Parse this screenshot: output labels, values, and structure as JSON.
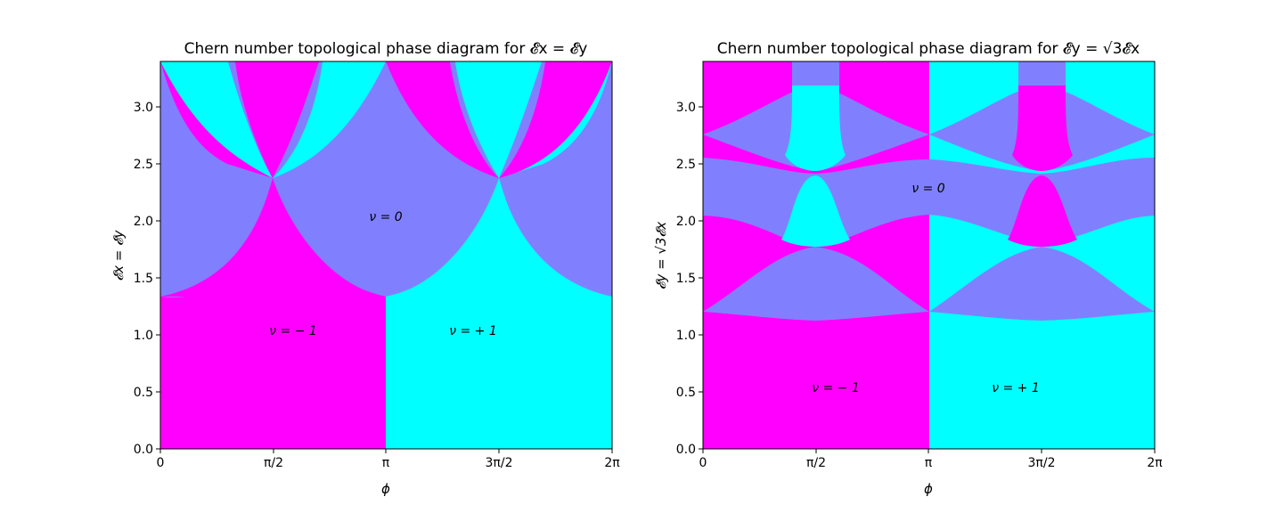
{
  "colors": {
    "plus": "#00ffff",
    "zero": "#8080ff",
    "minus": "#ff00ff"
  },
  "chart_data": [
    {
      "type": "heatmap",
      "title": "Chern number topological phase diagram for 𝓔x = 𝓔y",
      "xlabel": "ϕ",
      "ylabel": "𝓔x = 𝓔y",
      "xlim": [
        0,
        6.2832
      ],
      "ylim": [
        0,
        3.4
      ],
      "xticks": [
        "0",
        "π/2",
        "π",
        "3π/2",
        "2π"
      ],
      "yticks": [
        "0.0",
        "0.5",
        "1.0",
        "1.5",
        "2.0",
        "2.5",
        "3.0"
      ],
      "grid": false,
      "values": [
        -1,
        0,
        1
      ],
      "annotations": [
        {
          "text": "ν = 0",
          "x": 3.14,
          "y": 2.0
        },
        {
          "text": "ν = − 1",
          "x": 1.85,
          "y": 1.0
        },
        {
          "text": "ν = + 1",
          "x": 4.4,
          "y": 1.0
        }
      ]
    },
    {
      "type": "heatmap",
      "title": "Chern number topological phase diagram for 𝓔y = √3𝓔x",
      "xlabel": "ϕ",
      "ylabel": "𝓔y = √3𝓔x",
      "xlim": [
        0,
        6.2832
      ],
      "ylim": [
        0,
        3.4
      ],
      "xticks": [
        "0",
        "π/2",
        "π",
        "3π/2",
        "2π"
      ],
      "yticks": [
        "0.0",
        "0.5",
        "1.0",
        "1.5",
        "2.0",
        "2.5",
        "3.0"
      ],
      "grid": false,
      "values": [
        -1,
        0,
        1
      ],
      "annotations": [
        {
          "text": "ν = 0",
          "x": 3.1,
          "y": 2.25
        },
        {
          "text": "ν = − 1",
          "x": 1.85,
          "y": 0.5
        },
        {
          "text": "ν = + 1",
          "x": 4.35,
          "y": 0.5
        }
      ]
    }
  ]
}
